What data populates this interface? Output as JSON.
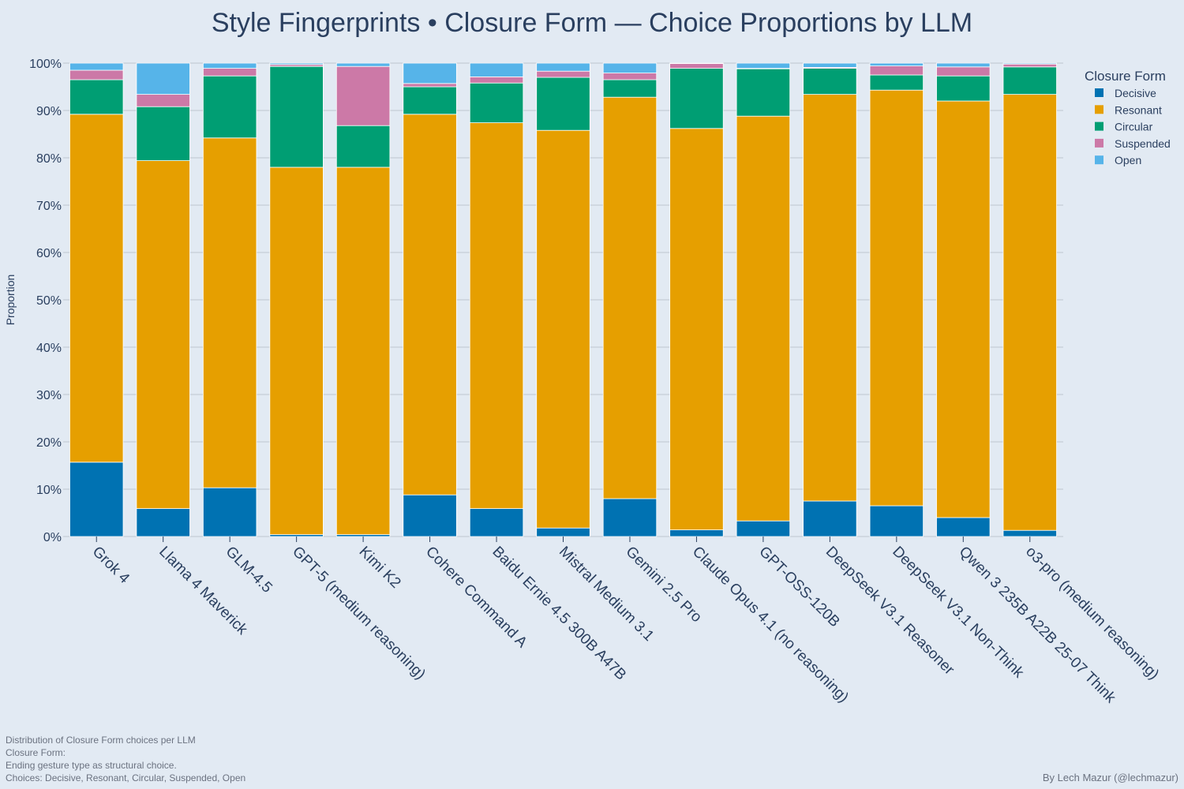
{
  "chart_data": {
    "type": "bar",
    "stacked": true,
    "title": "Style Fingerprints • Closure Form — Choice Proportions by LLM",
    "ylabel": "Proportion",
    "ylim": [
      0,
      1
    ],
    "yticks": [
      "0%",
      "10%",
      "20%",
      "30%",
      "40%",
      "50%",
      "60%",
      "70%",
      "80%",
      "90%",
      "100%"
    ],
    "grid": true,
    "legend": {
      "title": "Closure Form",
      "position": "top-right"
    },
    "categories": [
      "Grok 4",
      "Llama 4 Maverick",
      "GLM-4.5",
      "GPT-5 (medium reasoning)",
      "Kimi K2",
      "Cohere Command A",
      "Baidu Ernie 4.5 300B A47B",
      "Mistral Medium 3.1",
      "Gemini 2.5 Pro",
      "Claude Opus 4.1 (no reasoning)",
      "GPT-OSS-120B",
      "DeepSeek V3.1 Reasoner",
      "DeepSeek V3.1 Non-Think",
      "Qwen 3 235B A22B 25-07 Think",
      "o3-pro (medium reasoning)"
    ],
    "series": [
      {
        "name": "Decisive",
        "color": "#0072b2",
        "values": [
          0.157,
          0.059,
          0.103,
          0.004,
          0.004,
          0.088,
          0.059,
          0.018,
          0.08,
          0.014,
          0.033,
          0.075,
          0.065,
          0.04,
          0.013
        ]
      },
      {
        "name": "Resonant",
        "color": "#e69f00",
        "values": [
          0.735,
          0.735,
          0.739,
          0.776,
          0.776,
          0.804,
          0.815,
          0.84,
          0.848,
          0.848,
          0.855,
          0.859,
          0.878,
          0.88,
          0.921
        ]
      },
      {
        "name": "Circular",
        "color": "#009e73",
        "values": [
          0.073,
          0.114,
          0.131,
          0.213,
          0.088,
          0.058,
          0.084,
          0.112,
          0.037,
          0.127,
          0.1,
          0.055,
          0.032,
          0.053,
          0.058
        ]
      },
      {
        "name": "Suspended",
        "color": "#cc79a7",
        "values": [
          0.02,
          0.026,
          0.016,
          0.004,
          0.125,
          0.007,
          0.013,
          0.013,
          0.014,
          0.01,
          0.001,
          0.002,
          0.019,
          0.019,
          0.006
        ]
      },
      {
        "name": "Open",
        "color": "#56b4e9",
        "values": [
          0.015,
          0.066,
          0.011,
          0.003,
          0.007,
          0.043,
          0.029,
          0.017,
          0.021,
          0.001,
          0.011,
          0.009,
          0.006,
          0.008,
          0.002
        ]
      }
    ]
  },
  "footnote": {
    "line1": "Distribution of Closure Form choices per LLM",
    "line2": "Closure Form:",
    "line3": "Ending gesture type as structural choice.",
    "line4": "Choices: Decisive, Resonant, Circular, Suspended, Open"
  },
  "credit": "By Lech Mazur (@lechmazur)"
}
